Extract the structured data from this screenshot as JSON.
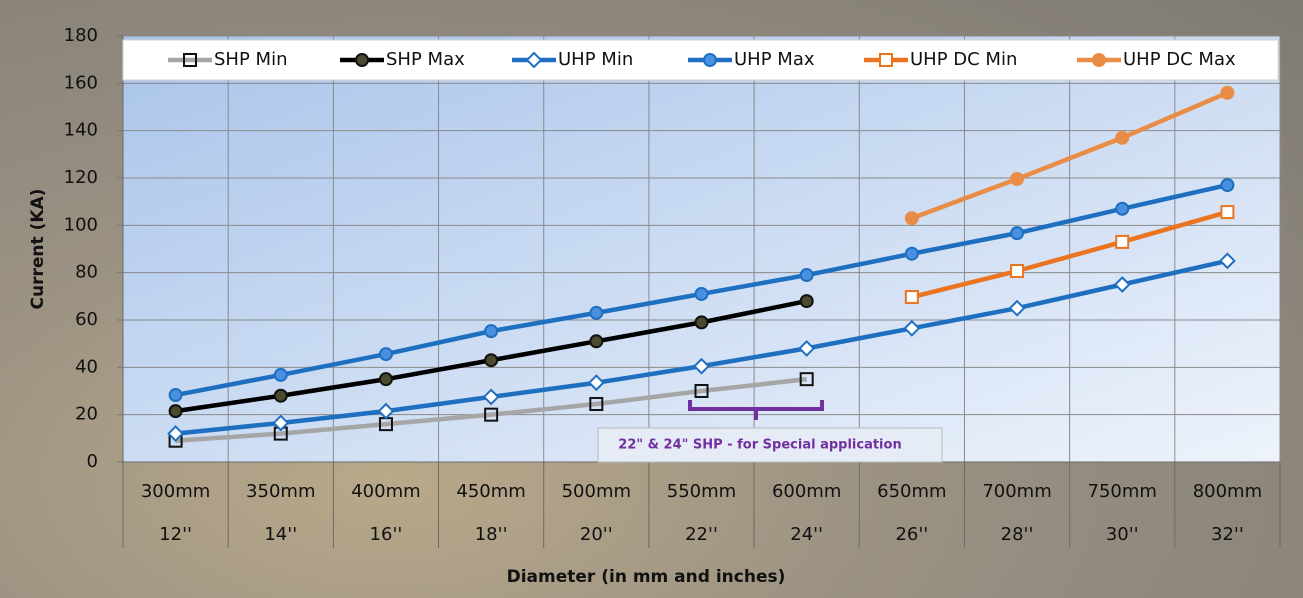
{
  "chart_data": {
    "type": "line",
    "y_label": "Current (KA)",
    "x_label": "Diameter (in mm and inches)",
    "categories": [
      "300mm",
      "350mm",
      "400mm",
      "450mm",
      "500mm",
      "550mm",
      "600mm",
      "650mm",
      "700mm",
      "750mm",
      "800mm"
    ],
    "categories_inches": [
      "12''",
      "14''",
      "16''",
      "18''",
      "20''",
      "22''",
      "24''",
      "26''",
      "28''",
      "30''",
      "32''"
    ],
    "ylim": [
      0,
      180
    ],
    "yticks": [
      0,
      20,
      40,
      60,
      80,
      100,
      120,
      140,
      160,
      180
    ],
    "grid": true,
    "legend": "top",
    "annotation": "22\" & 24\" SHP - for Special application",
    "series": [
      {
        "name": "SHP Min",
        "color": "#a6a6a6",
        "marker": "square",
        "marker_color": "#111111",
        "marker_fill": "none",
        "values": [
          9,
          12,
          16,
          20,
          24.5,
          30,
          35,
          null,
          null,
          null,
          null
        ]
      },
      {
        "name": "SHP Max",
        "color": "#000000",
        "marker": "circle",
        "marker_color": "#111111",
        "marker_fill": "#4b4a2f",
        "values": [
          21.5,
          28,
          35,
          43,
          51,
          59,
          68,
          null,
          null,
          null,
          null
        ]
      },
      {
        "name": "UHP Min",
        "color": "#1f6fc0",
        "marker": "diamond",
        "marker_color": "#1f6fc0",
        "marker_fill": "#ffffff",
        "values": [
          12,
          16.5,
          21.5,
          27.5,
          33.5,
          40.5,
          48,
          56.5,
          65,
          75,
          85
        ]
      },
      {
        "name": "UHP Max",
        "color": "#1f6fc0",
        "marker": "circle",
        "marker_color": "#1f6fc0",
        "marker_fill": "#4a90e0",
        "values": [
          28.3,
          36.8,
          45.6,
          55.3,
          63,
          71,
          79,
          88,
          96.7,
          107,
          117
        ]
      },
      {
        "name": "UHP DC Min",
        "color": "#ea7420",
        "marker": "square",
        "marker_color": "#ea7420",
        "marker_fill": "#ffffff",
        "values": [
          null,
          null,
          null,
          null,
          null,
          null,
          null,
          69.7,
          80.7,
          93,
          105.6
        ]
      },
      {
        "name": "UHP DC Max",
        "color": "#e98c45",
        "marker": "circle",
        "marker_color": "#e98c45",
        "marker_fill": "#e98c45",
        "values": [
          null,
          null,
          null,
          null,
          null,
          null,
          null,
          103,
          119.6,
          137,
          156
        ]
      }
    ]
  }
}
